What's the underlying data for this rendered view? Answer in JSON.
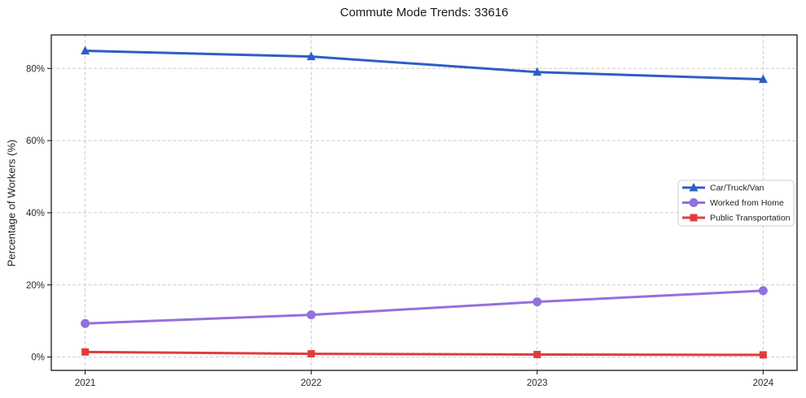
{
  "title": "Commute Mode Trends: 33616",
  "chart_data": {
    "type": "line",
    "title": "Commute Mode Trends: 33616",
    "xlabel": "",
    "ylabel": "Percentage of Workers (%)",
    "x": [
      2021,
      2022,
      2023,
      2024
    ],
    "xtick_labels": [
      "2021",
      "2022",
      "2023",
      "2024"
    ],
    "yticks": [
      0,
      20,
      40,
      60,
      80
    ],
    "ytick_labels": [
      "0%",
      "20%",
      "40%",
      "60%",
      "80%"
    ],
    "ylim": [
      -3.7,
      89.3
    ],
    "xlim": [
      2020.85,
      2024.15
    ],
    "grid": true,
    "legend_position": "center right",
    "series": [
      {
        "name": "Car/Truck/Van",
        "values": [
          84.9,
          83.3,
          79.0,
          77.0
        ],
        "color": "#2e5ec4",
        "marker": "triangle"
      },
      {
        "name": "Worked from Home",
        "values": [
          9.3,
          11.7,
          15.3,
          18.4
        ],
        "color": "#9370db",
        "marker": "circle"
      },
      {
        "name": "Public Transportation",
        "values": [
          1.4,
          0.9,
          0.7,
          0.6
        ],
        "color": "#e03c3e",
        "marker": "square"
      }
    ]
  }
}
